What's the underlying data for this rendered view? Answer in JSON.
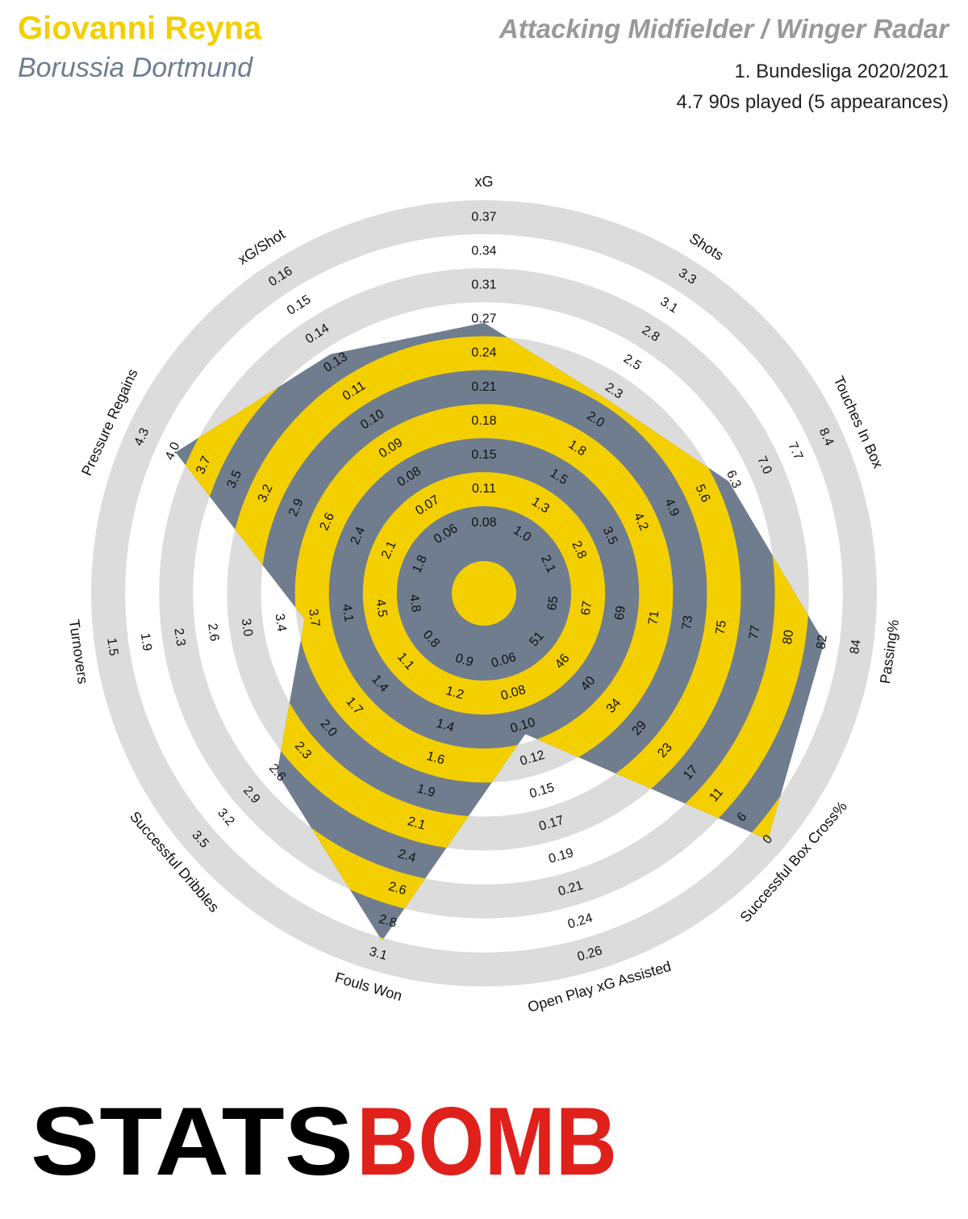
{
  "header": {
    "player": "Giovanni Reyna",
    "team": "Borussia Dortmund",
    "title": "Attacking Midfielder / Winger Radar",
    "competition": "1. Bundesliga 2020/2021",
    "minutes": "4.7 90s played (5 appearances)"
  },
  "logo": {
    "left": "STATS",
    "right": "BOMB"
  },
  "chart_data": {
    "type": "radar",
    "colors": {
      "band": "#f4cf00",
      "base": "#6f7d8f",
      "ring": "#dcdcdc"
    },
    "axes": [
      {
        "name": "xG",
        "value": 0.27,
        "ticks": [
          0.08,
          0.11,
          0.15,
          0.18,
          0.21,
          0.24,
          0.27,
          0.31,
          0.34,
          0.37
        ]
      },
      {
        "name": "Shots",
        "value": 2.2,
        "ticks": [
          {
            "value": 1,
            "label": "1.0"
          },
          1.3,
          1.5,
          1.8,
          {
            "value": 2,
            "label": "2.0"
          },
          2.3,
          2.5,
          2.8,
          3.1,
          3.3
        ]
      },
      {
        "name": "Touches In Box",
        "value": 6.2,
        "ticks": [
          2.1,
          2.8,
          3.5,
          4.2,
          4.9,
          5.6,
          6.3,
          {
            "value": 7,
            "label": "7.0"
          },
          7.7,
          8.4
        ]
      },
      {
        "name": "Passing%",
        "value": 82,
        "ticks": [
          65,
          67,
          69,
          71,
          73,
          75,
          77,
          80,
          82,
          84
        ]
      },
      {
        "name": "Successful Box Cross%",
        "value": 0,
        "ticks": [
          51,
          46,
          40,
          34,
          29,
          23,
          17,
          11,
          6,
          0
        ]
      },
      {
        "name": "Open Play xG Assisted",
        "value": 0.11,
        "ticks": [
          0.06,
          0.08,
          {
            "value": 0.1,
            "label": "0.10"
          },
          0.12,
          0.15,
          0.17,
          0.19,
          0.21,
          0.24,
          0.26
        ]
      },
      {
        "name": "Fouls Won",
        "value": 3.0,
        "ticks": [
          0.9,
          1.2,
          1.4,
          1.6,
          1.9,
          2.1,
          2.4,
          2.6,
          2.8,
          3.1
        ]
      },
      {
        "name": "Successful Dribbles",
        "value": 2.6,
        "ticks": [
          0.8,
          1.1,
          1.4,
          1.7,
          {
            "value": 2,
            "label": "2.0"
          },
          2.3,
          2.6,
          2.9,
          3.2,
          3.5
        ]
      },
      {
        "name": "Turnovers",
        "value": 3.6,
        "ticks": [
          4.8,
          4.5,
          4.1,
          3.7,
          3.4,
          {
            "value": 3,
            "label": "3.0"
          },
          2.6,
          2.3,
          1.9,
          1.5
        ]
      },
      {
        "name": "Pressure Regains",
        "value": 4.0,
        "ticks": [
          1.8,
          2.1,
          2.4,
          2.6,
          2.9,
          3.2,
          3.5,
          3.7,
          {
            "value": 4,
            "label": "4.0"
          },
          4.3
        ]
      },
      {
        "name": "xG/Shot",
        "value": 0.13,
        "ticks": [
          0.06,
          0.07,
          0.08,
          0.09,
          {
            "value": 0.1,
            "label": "0.10"
          },
          0.11,
          0.13,
          0.14,
          0.15,
          0.16
        ]
      }
    ]
  }
}
